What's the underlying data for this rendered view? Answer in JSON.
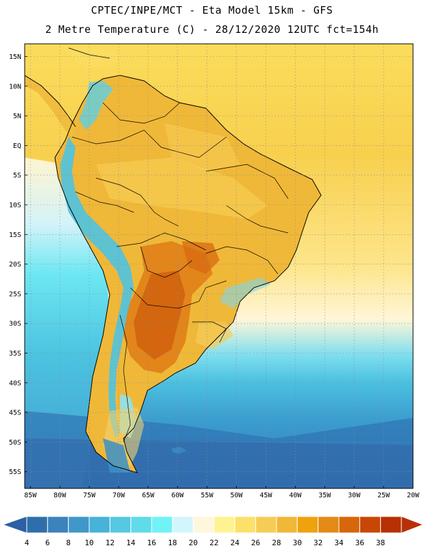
{
  "title_line1": "CPTEC/INPE/MCT - Eta Model 15km - GFS",
  "title_line2": "2 Metre Temperature (C) - 28/12/2020 12UTC fct=154h",
  "lat_labels": [
    "15N",
    "10N",
    "5N",
    "EQ",
    "5S",
    "10S",
    "15S",
    "20S",
    "25S",
    "30S",
    "35S",
    "40S",
    "45S",
    "50S",
    "55S"
  ],
  "lon_labels": [
    "85W",
    "80W",
    "75W",
    "70W",
    "65W",
    "60W",
    "55W",
    "50W",
    "45W",
    "40W",
    "35W",
    "30W",
    "25W",
    "20W"
  ],
  "colorbar": {
    "values": [
      "4",
      "6",
      "8",
      "10",
      "12",
      "14",
      "16",
      "18",
      "20",
      "22",
      "24",
      "26",
      "28",
      "30",
      "32",
      "34",
      "36",
      "38"
    ],
    "colors": [
      "#2e6fab",
      "#3c82bc",
      "#3f98c9",
      "#48b2d8",
      "#55c8e2",
      "#5fdbe9",
      "#70f2f6",
      "#d2f6fb",
      "#fff7dd",
      "#fff391",
      "#fbe06a",
      "#f5cd55",
      "#f0b838",
      "#eea20d",
      "#e38a17",
      "#d8660a",
      "#c84704",
      "#b83005"
    ],
    "left_arrow_color": "#2c5fa3",
    "right_arrow_color": "#b83005"
  },
  "colors": {
    "land_base": "#f0b838",
    "ocean_north": "#fbdb5a",
    "ocean_south": "#3ea7d4",
    "grid": "#9a9a9a"
  }
}
